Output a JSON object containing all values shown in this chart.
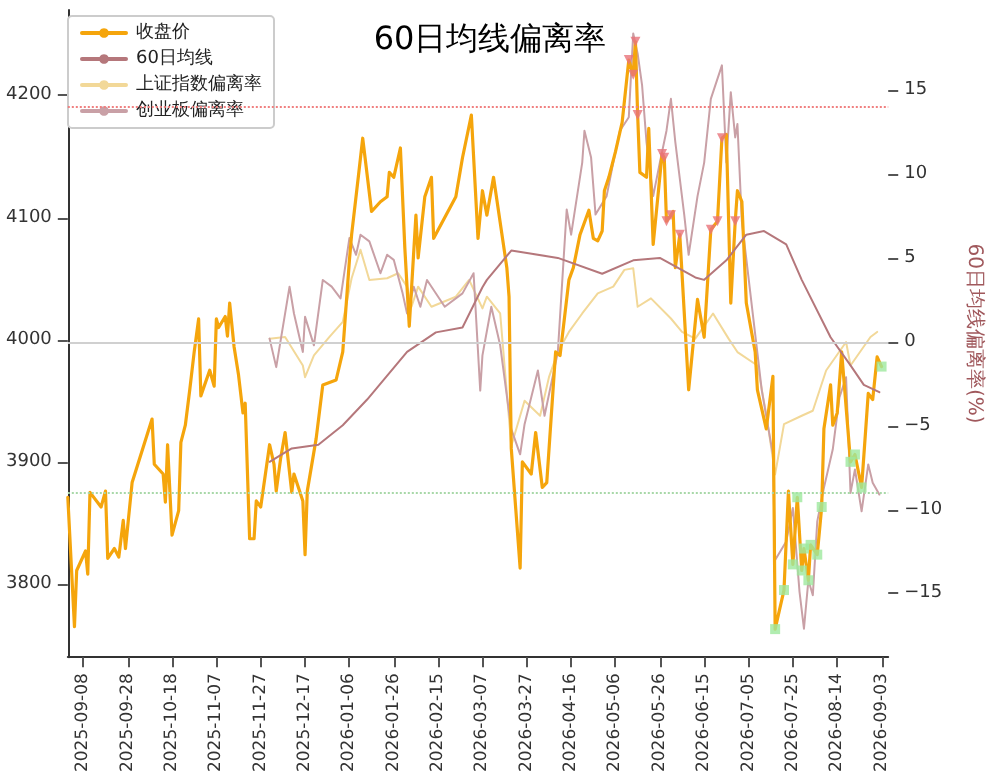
{
  "chart_data": {
    "type": "line",
    "title": "60日均线偏离率",
    "y2label": "60日均线偏离率(%)",
    "xlim": [
      "2025-09-01",
      "2026-09-06"
    ],
    "xticks": [
      "2025-09-08",
      "2025-09-28",
      "2025-10-18",
      "2025-11-07",
      "2025-11-27",
      "2025-12-17",
      "2026-01-06",
      "2026-01-26",
      "2026-02-15",
      "2026-03-07",
      "2026-03-27",
      "2026-04-16",
      "2026-05-06",
      "2026-05-26",
      "2026-06-15",
      "2026-07-05",
      "2026-07-25",
      "2026-08-14",
      "2026-09-03"
    ],
    "ylim": [
      3740,
      4270
    ],
    "yticks": [
      3800,
      3900,
      4000,
      4100,
      4200
    ],
    "y2lim": [
      -18.8,
      19.8
    ],
    "y2ticks": [
      {
        "value": -15,
        "label": "−15"
      },
      {
        "value": -10,
        "label": "−10"
      },
      {
        "value": -5,
        "label": "−5"
      },
      0,
      5,
      10,
      15
    ],
    "grid": false,
    "legend": "top left",
    "marker": "none",
    "line_style": "solid",
    "ref_lines": [
      {
        "axis": "y2",
        "value": 14,
        "color": "#f08080",
        "line_style": "dotted"
      },
      {
        "axis": "y2",
        "value": -9,
        "color": "#a8d8a8",
        "line_style": "dotted"
      },
      {
        "axis": "y2",
        "value": 0,
        "color": "#d0d0d0",
        "line_style": "solid"
      }
    ],
    "series": [
      {
        "name": "收盘价",
        "color": "#f5a50c",
        "x": [
          "2025-09-01",
          "2025-09-04",
          "2025-09-05",
          "2025-09-09",
          "2025-09-10",
          "2025-09-11",
          "2025-09-16",
          "2025-09-18",
          "2025-09-19",
          "2025-09-22",
          "2025-09-24",
          "2025-09-26",
          "2025-09-27",
          "2025-09-30",
          "2025-10-09",
          "2025-10-10",
          "2025-10-14",
          "2025-10-15",
          "2025-10-16",
          "2025-10-18",
          "2025-10-21",
          "2025-10-22",
          "2025-10-24",
          "2025-10-26",
          "2025-10-28",
          "2025-10-30",
          "2025-10-31",
          "2025-11-04",
          "2025-11-06",
          "2025-11-07",
          "2025-11-08",
          "2025-11-11",
          "2025-11-12",
          "2025-11-13",
          "2025-11-15",
          "2025-11-17",
          "2025-11-19",
          "2025-11-20",
          "2025-11-22",
          "2025-11-24",
          "2025-11-25",
          "2025-11-27",
          "2025-12-01",
          "2025-12-03",
          "2025-12-04",
          "2025-12-06",
          "2025-12-08",
          "2025-12-11",
          "2025-12-12",
          "2025-12-16",
          "2025-12-17",
          "2025-12-18",
          "2025-12-22",
          "2025-12-25",
          "2025-12-31",
          "2026-01-03",
          "2026-01-06",
          "2026-01-07",
          "2026-01-10",
          "2026-01-12",
          "2026-01-16",
          "2026-01-20",
          "2026-01-23",
          "2026-01-24",
          "2026-01-26",
          "2026-01-29",
          "2026-01-31",
          "2026-02-02",
          "2026-02-05",
          "2026-02-06",
          "2026-02-09",
          "2026-02-12",
          "2026-02-13",
          "2026-02-23",
          "2026-02-26",
          "2026-03-02",
          "2026-03-05",
          "2026-03-07",
          "2026-03-09",
          "2026-03-12",
          "2026-03-18",
          "2026-03-19",
          "2026-03-20",
          "2026-03-24",
          "2026-03-25",
          "2026-03-29",
          "2026-03-31",
          "2026-04-03",
          "2026-04-05",
          "2026-04-09",
          "2026-04-11",
          "2026-04-15",
          "2026-04-17",
          "2026-04-20",
          "2026-04-24",
          "2026-04-26",
          "2026-04-28",
          "2026-04-30",
          "2026-05-01",
          "2026-05-03",
          "2026-05-06",
          "2026-05-09",
          "2026-05-12",
          "2026-05-14",
          "2026-05-15",
          "2026-05-16",
          "2026-05-17",
          "2026-05-20",
          "2026-05-21",
          "2026-05-23",
          "2026-05-27",
          "2026-05-28",
          "2026-05-29",
          "2026-05-31",
          "2026-06-01",
          "2026-06-02",
          "2026-06-04",
          "2026-06-08",
          "2026-06-12",
          "2026-06-15",
          "2026-06-18",
          "2026-06-21",
          "2026-06-23",
          "2026-06-25",
          "2026-06-27",
          "2026-06-29",
          "2026-06-30",
          "2026-07-02",
          "2026-07-04",
          "2026-07-08",
          "2026-07-09",
          "2026-07-13",
          "2026-07-16",
          "2026-07-17",
          "2026-07-21",
          "2026-07-23",
          "2026-07-25",
          "2026-07-27",
          "2026-07-29",
          "2026-07-30",
          "2026-08-01",
          "2026-08-02",
          "2026-08-05",
          "2026-08-07",
          "2026-08-08",
          "2026-08-11",
          "2026-08-12",
          "2026-08-14",
          "2026-08-16",
          "2026-08-20",
          "2026-08-22",
          "2026-08-25",
          "2026-08-28",
          "2026-08-30",
          "2026-09-01",
          "2026-09-03"
        ],
        "values": [
          3871,
          3765,
          3811,
          3827,
          3808,
          3875,
          3863,
          3876,
          3821,
          3829,
          3822,
          3852,
          3829,
          3883,
          3935,
          3898,
          3890,
          3867,
          3914,
          3840,
          3860,
          3916,
          3930,
          3959,
          3990,
          4017,
          3954,
          3975,
          3962,
          4017,
          4010,
          4019,
          4003,
          4030,
          3994,
          3971,
          3940,
          3948,
          3837,
          3837,
          3868,
          3863,
          3914,
          3898,
          3876,
          3903,
          3924,
          3875,
          3890,
          3868,
          3824,
          3876,
          3919,
          3963,
          3967,
          3990,
          4065,
          4086,
          4133,
          4165,
          4105,
          4113,
          4117,
          4137,
          4133,
          4157,
          4075,
          4011,
          4102,
          4067,
          4117,
          4133,
          4083,
          4117,
          4149,
          4184,
          4083,
          4122,
          4102,
          4133,
          4059,
          4035,
          3911,
          3813,
          3900,
          3890,
          3924,
          3879,
          3883,
          3990,
          3987,
          4049,
          4059,
          4086,
          4106,
          4083,
          4081,
          4089,
          4122,
          4133,
          4154,
          4178,
          4229,
          4217,
          4244,
          4184,
          4137,
          4133,
          4173,
          4078,
          4152,
          4149,
          4097,
          4102,
          4105,
          4059,
          4086,
          3959,
          4033,
          4002,
          4090,
          4097,
          4165,
          4168,
          4030,
          4097,
          4122,
          4113,
          4030,
          3990,
          3959,
          3927,
          3970,
          3763,
          3795,
          3876,
          3816,
          3871,
          3811,
          3829,
          3803,
          3832,
          3824,
          3863,
          3927,
          3963,
          3930,
          3940,
          3990,
          3900,
          3906,
          3879,
          3956,
          3951,
          3986,
          3978
        ]
      },
      {
        "name": "60日均线",
        "color": "#b5777b",
        "x": [
          "2025-12-01",
          "2025-12-11",
          "2025-12-23",
          "2026-01-03",
          "2026-01-14",
          "2026-02-01",
          "2026-02-14",
          "2026-02-26",
          "2026-03-07",
          "2026-03-09",
          "2026-03-20",
          "2026-04-10",
          "2026-04-30",
          "2026-05-14",
          "2026-05-26",
          "2026-06-03",
          "2026-06-11",
          "2026-06-15",
          "2026-06-25",
          "2026-07-04",
          "2026-07-12",
          "2026-07-22",
          "2026-07-29",
          "2026-08-11",
          "2026-08-20",
          "2026-08-26",
          "2026-09-02"
        ],
        "values": [
          3900,
          3911,
          3914,
          3930,
          3951,
          3990,
          4006,
          4010,
          4043,
          4049,
          4073,
          4067,
          4054,
          4065,
          4067,
          4059,
          4051,
          4049,
          4065,
          4086,
          4089,
          4078,
          4049,
          4002,
          3979,
          3963,
          3957
        ]
      },
      {
        "name": "上证指数偏离率",
        "color": "#f2d898",
        "axis": "y2",
        "x": [
          "2025-12-01",
          "2025-12-08",
          "2025-12-16",
          "2025-12-17",
          "2025-12-21",
          "2025-12-28",
          "2026-01-03",
          "2026-01-07",
          "2026-01-11",
          "2026-01-15",
          "2026-01-23",
          "2026-01-28",
          "2026-02-01",
          "2026-02-03",
          "2026-02-06",
          "2026-02-12",
          "2026-02-23",
          "2026-03-01",
          "2026-03-07",
          "2026-03-09",
          "2026-03-15",
          "2026-03-20",
          "2026-03-26",
          "2026-04-02",
          "2026-04-06",
          "2026-04-10",
          "2026-04-15",
          "2026-04-21",
          "2026-04-28",
          "2026-05-05",
          "2026-05-10",
          "2026-05-14",
          "2026-05-16",
          "2026-05-22",
          "2026-05-31",
          "2026-06-05",
          "2026-06-11",
          "2026-06-19",
          "2026-06-26",
          "2026-06-30",
          "2026-07-09",
          "2026-07-13",
          "2026-07-17",
          "2026-07-21",
          "2026-07-29",
          "2026-08-03",
          "2026-08-09",
          "2026-08-18",
          "2026-08-20",
          "2026-08-29",
          "2026-09-01"
        ],
        "values": [
          0.2,
          0.3,
          -1.4,
          -2.1,
          -0.8,
          0.3,
          1.2,
          3.8,
          5.5,
          3.7,
          3.8,
          4.1,
          3.3,
          2.1,
          3.3,
          2.1,
          2.7,
          3.7,
          2.0,
          2.7,
          1.7,
          -6.2,
          -3.5,
          -4.4,
          -2.1,
          -0.6,
          0.6,
          1.7,
          2.9,
          3.3,
          4.3,
          4.4,
          2.1,
          2.6,
          1.4,
          0.6,
          0.2,
          1.7,
          0.2,
          -0.6,
          -1.4,
          -4.3,
          -7.9,
          -4.9,
          -4.4,
          -4.1,
          -1.7,
          0,
          -1.4,
          0.3,
          0.6
        ]
      },
      {
        "name": "创业板偏离率",
        "color": "#c9a0a6",
        "axis": "y2",
        "x": [
          "2025-12-01",
          "2025-12-04",
          "2025-12-10",
          "2025-12-12",
          "2025-12-16",
          "2025-12-17",
          "2025-12-21",
          "2025-12-25",
          "2025-12-29",
          "2026-01-02",
          "2026-01-06",
          "2026-01-09",
          "2026-01-11",
          "2026-01-15",
          "2026-01-20",
          "2026-01-23",
          "2026-01-26",
          "2026-01-30",
          "2026-02-01",
          "2026-02-04",
          "2026-02-07",
          "2026-02-10",
          "2026-02-18",
          "2026-02-26",
          "2026-03-03",
          "2026-03-06",
          "2026-03-07",
          "2026-03-11",
          "2026-03-15",
          "2026-03-20",
          "2026-03-24",
          "2026-03-26",
          "2026-04-01",
          "2026-04-04",
          "2026-04-10",
          "2026-04-14",
          "2026-04-16",
          "2026-04-21",
          "2026-04-22",
          "2026-04-25",
          "2026-04-27",
          "2026-05-02",
          "2026-05-05",
          "2026-05-08",
          "2026-05-12",
          "2026-05-14",
          "2026-05-16",
          "2026-05-18",
          "2026-05-20",
          "2026-05-23",
          "2026-05-26",
          "2026-05-29",
          "2026-05-31",
          "2026-06-02",
          "2026-06-06",
          "2026-06-08",
          "2026-06-12",
          "2026-06-15",
          "2026-06-18",
          "2026-06-23",
          "2026-06-25",
          "2026-06-27",
          "2026-06-29",
          "2026-06-30",
          "2026-07-02",
          "2026-07-11",
          "2026-07-16",
          "2026-07-17",
          "2026-07-22",
          "2026-07-25",
          "2026-07-28",
          "2026-07-30",
          "2026-08-01",
          "2026-08-03",
          "2026-08-05",
          "2026-08-08",
          "2026-08-12",
          "2026-08-15",
          "2026-08-18",
          "2026-08-20",
          "2026-08-22",
          "2026-08-25",
          "2026-08-28",
          "2026-08-30",
          "2026-09-02"
        ],
        "values": [
          0.2,
          -1.5,
          3.3,
          1.7,
          -0.6,
          1.5,
          -0.2,
          3.7,
          3.3,
          2.6,
          6.2,
          5.2,
          6.4,
          6.0,
          4.1,
          5.2,
          4.9,
          2.9,
          1.7,
          3.3,
          2.1,
          3.7,
          2.1,
          2.9,
          4.1,
          -2.9,
          -0.8,
          2.1,
          -0.2,
          -5.2,
          -6.7,
          -4.9,
          -1.7,
          -4.4,
          -0.6,
          7.9,
          6.4,
          10.7,
          12.6,
          11.0,
          7.6,
          8.7,
          10.7,
          12.6,
          13.4,
          18.4,
          17.2,
          15.3,
          11.9,
          8.7,
          10.7,
          12.6,
          14.5,
          11.9,
          7.6,
          5.2,
          8.7,
          10.7,
          14.5,
          16.5,
          10.7,
          14.9,
          12.2,
          13.0,
          7.2,
          -2.9,
          -6.7,
          -13.0,
          -11.9,
          -9.9,
          -14.9,
          -17.1,
          -14.2,
          -15.1,
          -10.7,
          -8.7,
          -6.4,
          -3.3,
          -2.1,
          -9.0,
          -7.6,
          -10.1,
          -7.3,
          -8.4,
          -9.1
        ]
      },
      {
        "type": "scatter",
        "marker": "triangle",
        "color": "#e8737a",
        "x": [
          "2026-05-12",
          "2026-05-14",
          "2026-05-15",
          "2026-05-16",
          "2026-05-27",
          "2026-05-28",
          "2026-05-29",
          "2026-05-31",
          "2026-06-04",
          "2026-06-18",
          "2026-06-21",
          "2026-06-23",
          "2026-06-29"
        ],
        "values": [
          4229,
          4217,
          4244,
          4184,
          4152,
          4149,
          4097,
          4102,
          4086,
          4090,
          4097,
          4165,
          4097
        ]
      },
      {
        "type": "scatter",
        "marker": "square",
        "color": "#9ee89e",
        "x": [
          "2026-07-17",
          "2026-07-21",
          "2026-07-25",
          "2026-07-27",
          "2026-07-29",
          "2026-07-30",
          "2026-08-01",
          "2026-08-02",
          "2026-08-05",
          "2026-08-07",
          "2026-08-20",
          "2026-08-22",
          "2026-08-25",
          "2026-09-03"
        ],
        "values": [
          3763,
          3795,
          3816,
          3871,
          3811,
          3829,
          3803,
          3832,
          3824,
          3863,
          3900,
          3906,
          3879,
          3978
        ]
      }
    ]
  }
}
